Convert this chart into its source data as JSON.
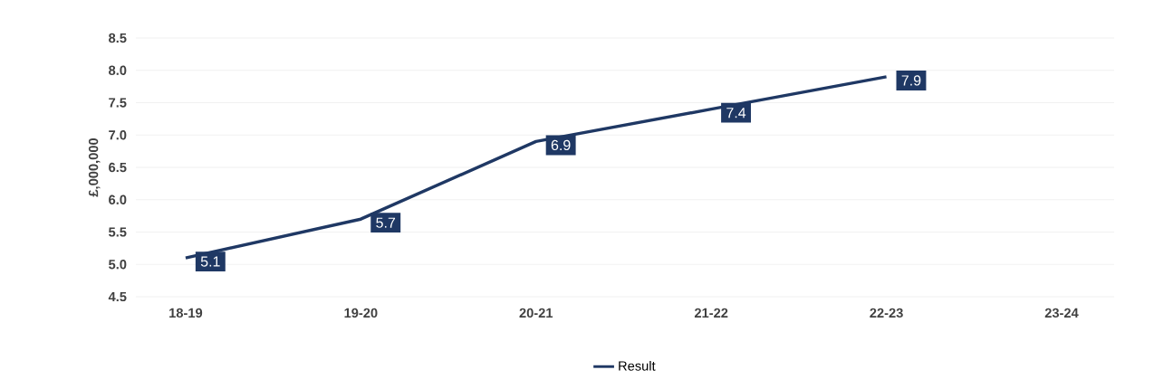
{
  "chart_data": {
    "type": "line",
    "ylabel": "£,000,000",
    "categories": [
      "18-19",
      "19-20",
      "20-21",
      "21-22",
      "22-23",
      "23-24"
    ],
    "series": [
      {
        "name": "Result",
        "color": "#1f3864",
        "values": [
          5.1,
          5.7,
          6.9,
          7.4,
          7.9,
          null
        ]
      }
    ],
    "ylim": [
      4.5,
      8.5
    ],
    "yticks": [
      4.5,
      {
        "value": 5,
        "label": "5.0"
      },
      5.5,
      {
        "value": 6,
        "label": "6.0"
      },
      6.5,
      {
        "value": 7,
        "label": "7.0"
      },
      7.5,
      {
        "value": 8,
        "label": "8.0"
      },
      8.5
    ],
    "grid": "y",
    "legend": "bottom",
    "data_labels": true
  }
}
